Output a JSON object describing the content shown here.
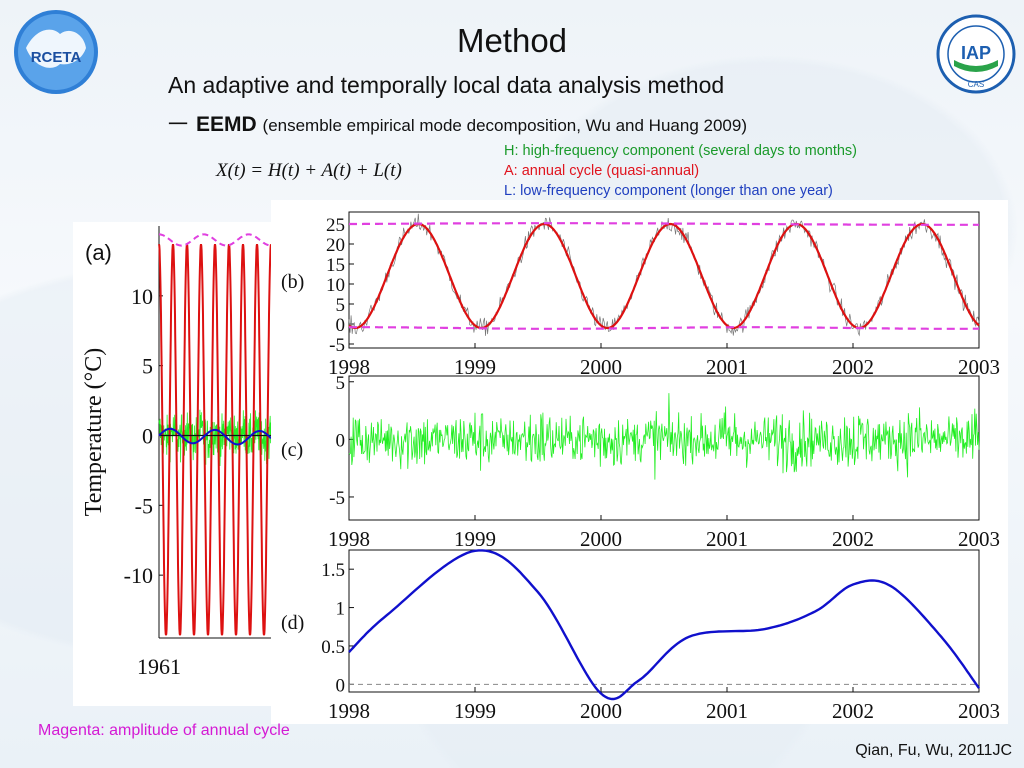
{
  "slide": {
    "title": "Method",
    "subtitle": "An adaptive and temporally local data analysis method",
    "line3_dash": "一",
    "line3_bold": "EEMD",
    "line3_rest": "(ensemble empirical mode decomposition, Wu and Huang 2009)",
    "equation": "X(t) = H(t) + A(t) + L(t)",
    "legend_h": "H: high-frequency component (several days to months)",
    "legend_a": "A: annual cycle (quasi-annual)",
    "legend_l": "L: low-frequency component (longer than one year)",
    "footnote": "Magenta: amplitude of annual cycle",
    "citation": "Qian, Fu, Wu, 2011JC",
    "logo_left_text": "RCETA",
    "logo_right_text": "IAP",
    "logo_right_ring": "CAS"
  },
  "colors": {
    "green": "#1a9a2a",
    "red": "#e0141e",
    "blue": "#1f3fbf",
    "magenta": "#e040e0",
    "line_green": "#22ee22",
    "line_red": "#dd1111",
    "line_blue": "#1010cc",
    "line_gray": "#777777"
  },
  "chart_data": [
    {
      "id": "a",
      "type": "line",
      "panel_label": "(a)",
      "ylabel": "Temperature (°C)",
      "yticks": [
        10,
        5,
        0,
        -5,
        -10
      ],
      "ylim": [
        -14.5,
        15
      ],
      "xtick_labels": [
        "1961"
      ],
      "series": [
        {
          "color": "red",
          "description": "annual cycle, amplitude about 14",
          "cycles": 8,
          "amplitude": 14
        },
        {
          "color": "green",
          "description": "high-frequency component"
        },
        {
          "color": "blue",
          "description": "low-frequency component"
        },
        {
          "color": "magenta",
          "description": "amplitude envelope near 14"
        }
      ]
    },
    {
      "id": "b",
      "type": "line",
      "panel_label": "(b)",
      "x": [
        "1998",
        "1999",
        "2000",
        "2001",
        "2002",
        "2003"
      ],
      "yticks": [
        25,
        20,
        15,
        10,
        5,
        0,
        -5
      ],
      "ylim": [
        -6,
        28
      ],
      "series": [
        {
          "color": "gray",
          "description": "daily temperature X(t)"
        },
        {
          "color": "red",
          "description": "annual cycle, range about -1 to 25, peaks mid-year"
        },
        {
          "color": "magenta",
          "description": "upper envelope ~25, lower envelope ~-1"
        }
      ]
    },
    {
      "id": "c",
      "type": "line",
      "panel_label": "(c)",
      "x": [
        "1998",
        "1999",
        "2000",
        "2001",
        "2002",
        "2003"
      ],
      "yticks": [
        5,
        0,
        -5
      ],
      "ylim": [
        -7,
        5.5
      ],
      "series": [
        {
          "color": "green",
          "description": "high-frequency residual, roughly -6 to 5"
        }
      ]
    },
    {
      "id": "d",
      "type": "line",
      "panel_label": "(d)",
      "x": [
        "1998",
        "1999",
        "2000",
        "2001",
        "2002",
        "2003"
      ],
      "yticks": [
        1.5,
        1,
        0.5,
        0
      ],
      "ylim": [
        -0.1,
        1.75
      ],
      "series": [
        {
          "color": "blue",
          "description": "low-frequency component",
          "points": [
            [
              1998.0,
              0.42
            ],
            [
              1998.3,
              0.9
            ],
            [
              1999.0,
              1.74
            ],
            [
              1999.5,
              1.2
            ],
            [
              2000.0,
              -0.12
            ],
            [
              2000.3,
              0.05
            ],
            [
              2000.7,
              0.62
            ],
            [
              2001.3,
              0.72
            ],
            [
              2001.7,
              0.95
            ],
            [
              2002.0,
              1.3
            ],
            [
              2002.3,
              1.28
            ],
            [
              2002.7,
              0.62
            ],
            [
              2003.0,
              -0.05
            ]
          ]
        }
      ]
    }
  ]
}
